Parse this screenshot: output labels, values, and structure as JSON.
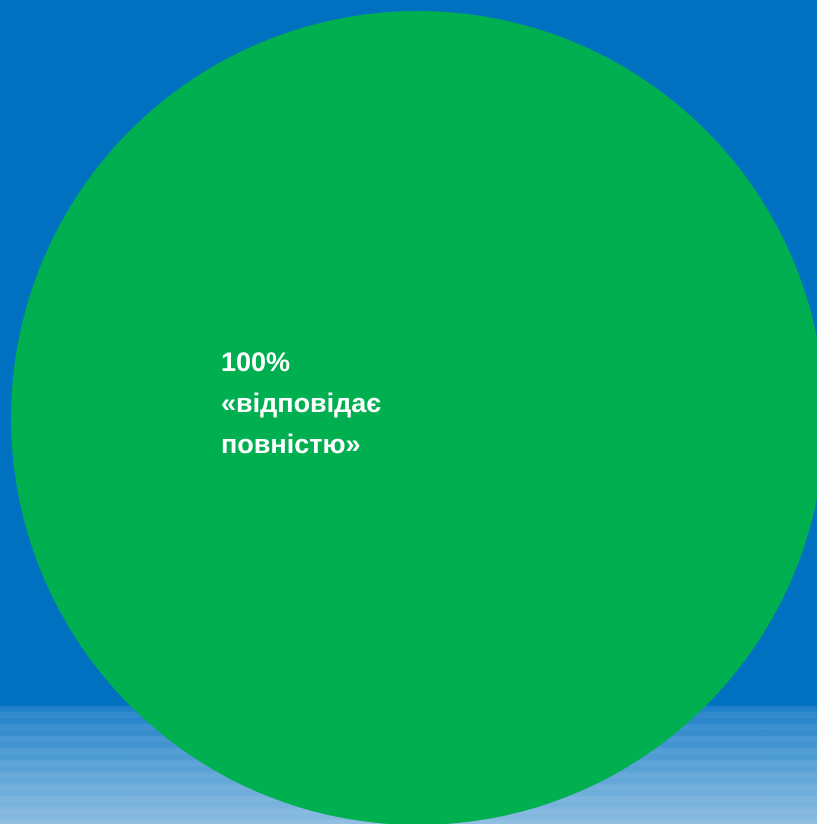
{
  "chart_data": {
    "type": "pie",
    "slices": [
      {
        "value": 100,
        "value_label": "100%",
        "category_label": "«відповідає повністю»",
        "category_lines": [
          "«відповідає",
          "повністю»"
        ],
        "color": "#00b050"
      }
    ],
    "legend": "none",
    "background_color": "#0070c0"
  }
}
